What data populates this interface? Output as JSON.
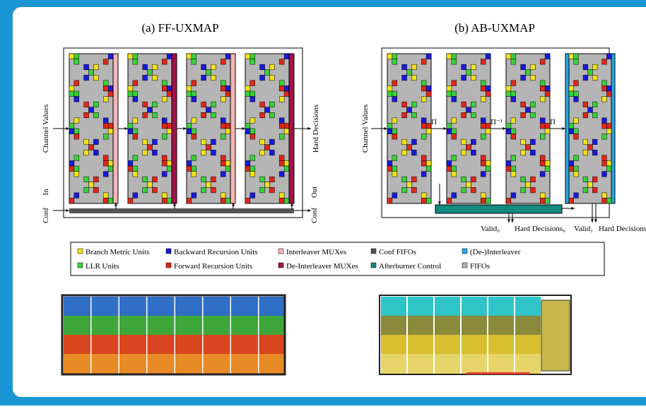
{
  "panels": [
    {
      "title": "(a) FF-UXMAP",
      "input_label": "Channel Values",
      "output_label": "Hard Decisions",
      "conf_label": "Conf",
      "in_label": "In",
      "out_label": "Out",
      "conf_out_label": "Conf"
    },
    {
      "title": "(b) AB-UXMAP",
      "input_label": "Channel Values",
      "interleavers": [
        "Π",
        "Π⁻¹",
        "Π"
      ],
      "outputs": [
        "Valid₀",
        "Hard Decisions₀",
        "Valid₁",
        "Hard Decisions"
      ]
    }
  ],
  "legend": [
    {
      "label": "Branch Metric Units",
      "color": "#f2e21a"
    },
    {
      "label": "Backward Recursion Units",
      "color": "#1a1adb"
    },
    {
      "label": "Interleaver MUXes",
      "color": "#f5b5b5"
    },
    {
      "label": "Conf   FIFOs",
      "color": "#555555"
    },
    {
      "label": "(De-)Interleaver",
      "color": "#29a9e0"
    },
    {
      "label": "LLR Units",
      "color": "#3ad13a"
    },
    {
      "label": "Forward Recursion Units",
      "color": "#e0271a"
    },
    {
      "label": "De-Interleaver MUXes",
      "color": "#a3124a"
    },
    {
      "label": "Afterburner Control",
      "color": "#138a7e"
    },
    {
      "label": "FIFOs",
      "color": "#b0b0b0"
    }
  ]
}
